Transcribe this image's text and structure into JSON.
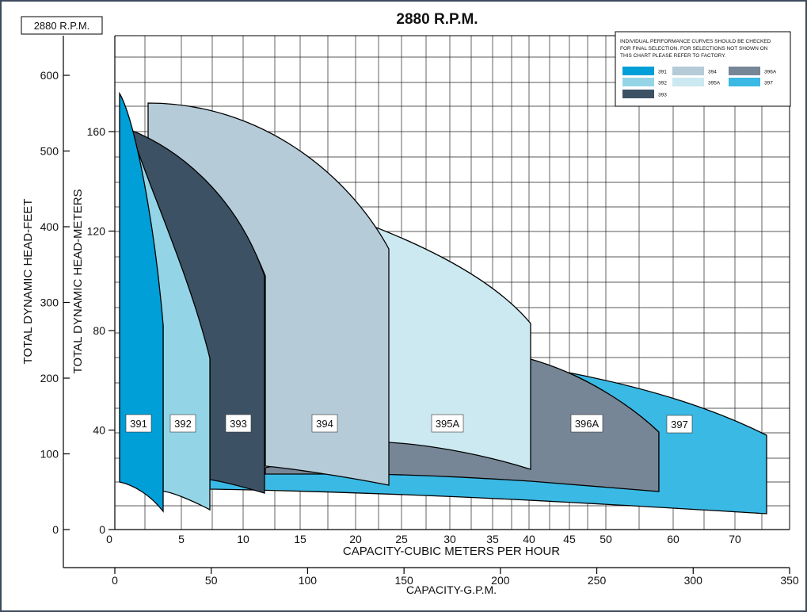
{
  "page": {
    "title": "2880 R.P.M.",
    "rpm_box": "2880 R.P.M.",
    "legend_note": [
      "INDIVIDUAL PERFORMANCE CURVES SHOULD BE CHECKED",
      "FOR FINAL SELECTION. FOR SELECTIONS NOT SHOWN ON",
      "THIS CHART PLEASE REFER TO FACTORY."
    ]
  },
  "chart_data": {
    "type": "area",
    "title": "2880 R.P.M.",
    "axes": {
      "y_feet": {
        "label": "TOTAL DYNAMIC HEAD-FEET",
        "range": [
          0,
          600
        ],
        "ticks": [
          0,
          100,
          200,
          300,
          400,
          500,
          600
        ]
      },
      "y_meters": {
        "label": "TOTAL DYNAMIC HEAD-METERS",
        "range": [
          0,
          182.9
        ],
        "ticks": [
          0,
          40,
          80,
          120,
          160
        ]
      },
      "x_m3h": {
        "label": "CAPACITY-CUBIC METERS PER HOUR",
        "ticks": [
          0,
          5,
          10,
          15,
          20,
          25,
          30,
          35,
          40,
          45,
          50,
          60,
          70
        ]
      },
      "x_gpm": {
        "label": "CAPACITY-G.P.M.",
        "range": [
          0,
          350
        ],
        "ticks": [
          0,
          50,
          100,
          150,
          200,
          250,
          300,
          350
        ]
      }
    },
    "grid": true,
    "legend_placement": "top-right",
    "series": [
      {
        "name": "391",
        "color": "#009fd8",
        "gpm_range": [
          2,
          24
        ],
        "head_ft_top": [
          575,
          270
        ],
        "head_ft_bottom": [
          68,
          28
        ]
      },
      {
        "name": "392",
        "color": "#93d5e6",
        "gpm_range": [
          24,
          48
        ],
        "head_ft_top": [
          480,
          230
        ],
        "head_ft_bottom": [
          52,
          30
        ]
      },
      {
        "name": "393",
        "color": "#3d5165",
        "gpm_range": [
          8,
          77
        ],
        "head_ft_top": [
          525,
          335
        ],
        "head_ft_bottom": [
          72,
          55
        ]
      },
      {
        "name": "394",
        "color": "#b5cbd8",
        "gpm_range": [
          17,
          140
        ],
        "head_ft_top": [
          560,
          370
        ],
        "head_ft_bottom": [
          85,
          62
        ]
      },
      {
        "name": "395A",
        "color": "#cce8f0",
        "gpm_range": [
          140,
          215
        ],
        "head_ft_top": [
          400,
          270
        ],
        "head_ft_bottom": [
          115,
          90
        ]
      },
      {
        "name": "396A",
        "color": "#778696",
        "gpm_range": [
          88,
          285
        ],
        "head_ft_top": [
          225,
          135
        ],
        "head_ft_bottom": [
          75,
          40
        ]
      },
      {
        "name": "397",
        "color": "#3ab9e4",
        "gpm_range": [
          77,
          350
        ],
        "head_ft_top": [
          210,
          130
        ],
        "head_ft_bottom": [
          60,
          25
        ]
      }
    ],
    "curve_labels": [
      "391",
      "392",
      "393",
      "394",
      "395A",
      "396A",
      "397"
    ],
    "legend": [
      {
        "name": "391",
        "color": "#009fd8"
      },
      {
        "name": "394",
        "color": "#b5cbd8"
      },
      {
        "name": "396A",
        "color": "#778696"
      },
      {
        "name": "392",
        "color": "#93d5e6"
      },
      {
        "name": "395A",
        "color": "#cce8f0"
      },
      {
        "name": "397",
        "color": "#3ab9e4"
      },
      {
        "name": "393",
        "color": "#3d5165"
      }
    ]
  }
}
